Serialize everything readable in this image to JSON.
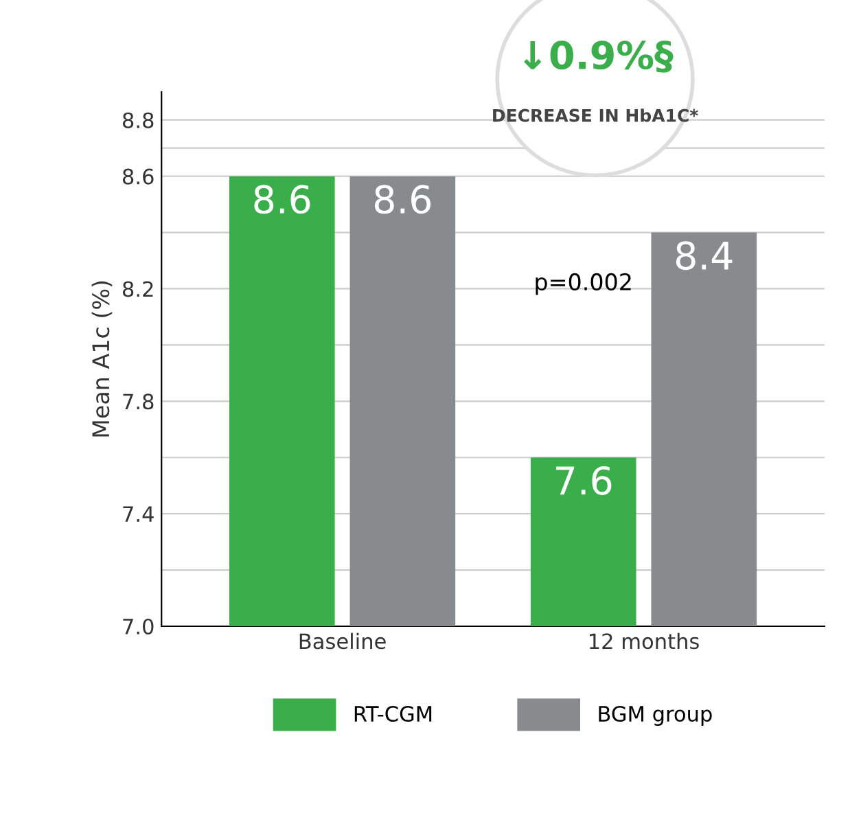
{
  "chart_data": {
    "type": "bar",
    "categories": [
      "Baseline",
      "12 months"
    ],
    "series": [
      {
        "name": "RT-CGM",
        "color": "#3aae4a",
        "values": [
          8.6,
          7.6
        ]
      },
      {
        "name": "BGM group",
        "color": "#888b8d",
        "values": [
          8.6,
          8.4
        ]
      }
    ],
    "ylabel": "Mean A1c (%)",
    "ylim": [
      7.0,
      8.9
    ],
    "yticks": [
      {
        "value": 7.0,
        "label": "7.0"
      },
      {
        "value": 7.2,
        "label": null
      },
      7.4,
      {
        "value": 7.6,
        "label": null
      },
      7.8,
      {
        "value": 8.0,
        "label": null
      },
      8.2,
      {
        "value": 8.4,
        "label": null
      },
      8.6,
      {
        "value": 8.7,
        "label": null
      },
      8.8
    ],
    "grid": "y",
    "legend": "bottom",
    "data_labels": true,
    "annotations": [
      "p=0.002",
      "↓0.9%§",
      "DECREASE IN HbA1C*"
    ]
  }
}
